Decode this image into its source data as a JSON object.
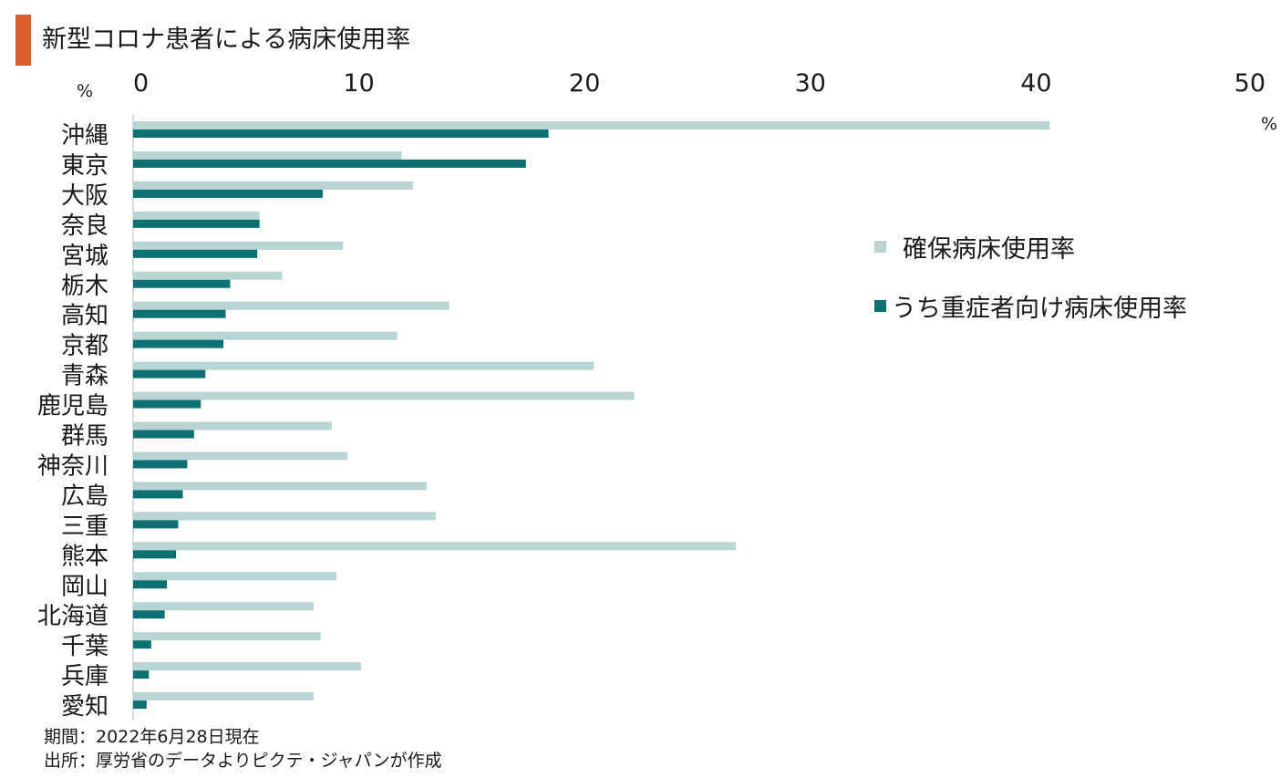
{
  "header": {
    "title": "新型コロナ患者による病床使用率",
    "accent_color": "#d65f2a"
  },
  "footer": {
    "period": "期間：2022年6月28日現在",
    "source": "出所：厚労省のデータよりピクテ・ジャパンが作成"
  },
  "chart_data": {
    "type": "bar",
    "orientation": "horizontal",
    "title": "新型コロナ患者による病床使用率",
    "x_unit_left": "%",
    "x_unit_right": "%",
    "xlim": [
      0,
      50
    ],
    "xticks": [
      0,
      10,
      20,
      30,
      40,
      50
    ],
    "xtick_labels": [
      "0",
      "10",
      "20",
      "30",
      "40",
      "50"
    ],
    "grid": false,
    "legend_position": "right",
    "categories": [
      "沖縄",
      "東京",
      "大阪",
      "奈良",
      "宮城",
      "栃木",
      "高知",
      "京都",
      "青森",
      "鹿児島",
      "群馬",
      "神奈川",
      "広島",
      "三重",
      "熊本",
      "岡山",
      "北海道",
      "千葉",
      "兵庫",
      "愛知"
    ],
    "series": [
      {
        "name": "確保病床使用率",
        "color": "#b8d4d3",
        "values": [
          40.6,
          11.9,
          12.4,
          5.6,
          9.3,
          6.6,
          14.0,
          11.7,
          20.4,
          22.2,
          8.8,
          9.5,
          13.0,
          13.4,
          26.7,
          9.0,
          8.0,
          8.3,
          10.1,
          8.0
        ]
      },
      {
        "name": "うち重症者向け病床使用率",
        "color": "#0d7072",
        "values": [
          18.4,
          17.4,
          8.4,
          5.6,
          5.5,
          4.3,
          4.1,
          4.0,
          3.2,
          3.0,
          2.7,
          2.4,
          2.2,
          2.0,
          1.9,
          1.5,
          1.4,
          0.8,
          0.7,
          0.6
        ]
      }
    ]
  }
}
